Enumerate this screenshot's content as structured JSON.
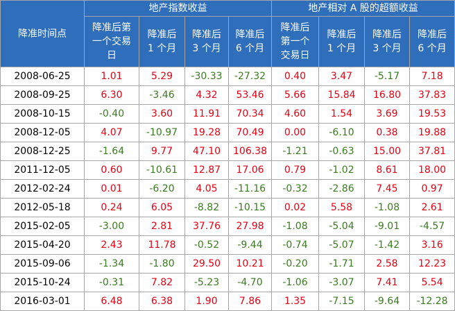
{
  "header": {
    "date_col": "降准时间点",
    "group1": "地产指数收益",
    "group2": "地产相对 A 股的超额收益",
    "group1_cols": [
      [
        "降准后第",
        "一个交易",
        "日"
      ],
      [
        "降准后",
        "1 个月"
      ],
      [
        "降准后",
        "3 个月"
      ],
      [
        "降准后",
        "6 个月"
      ]
    ],
    "group2_cols": [
      [
        "降准后",
        "第一个",
        "交易日"
      ],
      [
        "降准后",
        "1 个月"
      ],
      [
        "降准后",
        "3 个月"
      ],
      [
        "降准后",
        "6 个月"
      ]
    ]
  },
  "colors": {
    "header_bg": "#2f6eba",
    "positive": "#e60012",
    "negative": "#3a7b1f"
  },
  "rows": [
    {
      "date": "2008-06-25",
      "vals": [
        "1.01",
        "5.29",
        "-30.33",
        "-27.32",
        "0.40",
        "3.47",
        "-5.17",
        "7.18"
      ]
    },
    {
      "date": "2008-09-25",
      "vals": [
        "6.30",
        "-3.46",
        "4.32",
        "53.46",
        "5.66",
        "15.84",
        "16.80",
        "37.83"
      ]
    },
    {
      "date": "2008-10-15",
      "vals": [
        "-0.40",
        "3.60",
        "11.91",
        "70.34",
        "4.60",
        "1.54",
        "3.69",
        "19.53"
      ]
    },
    {
      "date": "2008-12-05",
      "vals": [
        "4.07",
        "-10.97",
        "19.28",
        "70.49",
        "0.00",
        "-6.10",
        "0.38",
        "19.88"
      ]
    },
    {
      "date": "2008-12-25",
      "vals": [
        "-1.64",
        "9.77",
        "47.10",
        "106.38",
        "-1.21",
        "-0.63",
        "15.00",
        "37.81"
      ]
    },
    {
      "date": "2011-12-05",
      "vals": [
        "0.60",
        "-10.61",
        "12.87",
        "17.06",
        "0.79",
        "-1.02",
        "8.61",
        "18.00"
      ]
    },
    {
      "date": "2012-02-24",
      "vals": [
        "0.01",
        "-6.20",
        "4.05",
        "-11.16",
        "-0.32",
        "-2.86",
        "7.45",
        "0.97"
      ]
    },
    {
      "date": "2012-05-18",
      "vals": [
        "0.24",
        "6.05",
        "-8.82",
        "-10.15",
        "0.02",
        "5.58",
        "-1.08",
        "2.61"
      ]
    },
    {
      "date": "2015-02-05",
      "vals": [
        "-3.00",
        "2.81",
        "37.76",
        "27.98",
        "-1.08",
        "-5.04",
        "-9.01",
        "-4.57"
      ]
    },
    {
      "date": "2015-04-20",
      "vals": [
        "2.43",
        "11.78",
        "-0.52",
        "-9.44",
        "-0.74",
        "-5.07",
        "-1.42",
        "3.16"
      ]
    },
    {
      "date": "2015-09-06",
      "vals": [
        "-1.34",
        "-1.80",
        "29.50",
        "10.21",
        "-0.20",
        "-1.71",
        "2.58",
        "12.23"
      ]
    },
    {
      "date": "2015-10-24",
      "vals": [
        "-0.31",
        "7.82",
        "-5.23",
        "-4.70",
        "-1.06",
        "-3.07",
        "7.41",
        "5.54"
      ]
    },
    {
      "date": "2016-03-01",
      "vals": [
        "6.48",
        "6.38",
        "1.90",
        "7.86",
        "1.35",
        "-7.15",
        "-9.64",
        "-12.28"
      ]
    }
  ]
}
